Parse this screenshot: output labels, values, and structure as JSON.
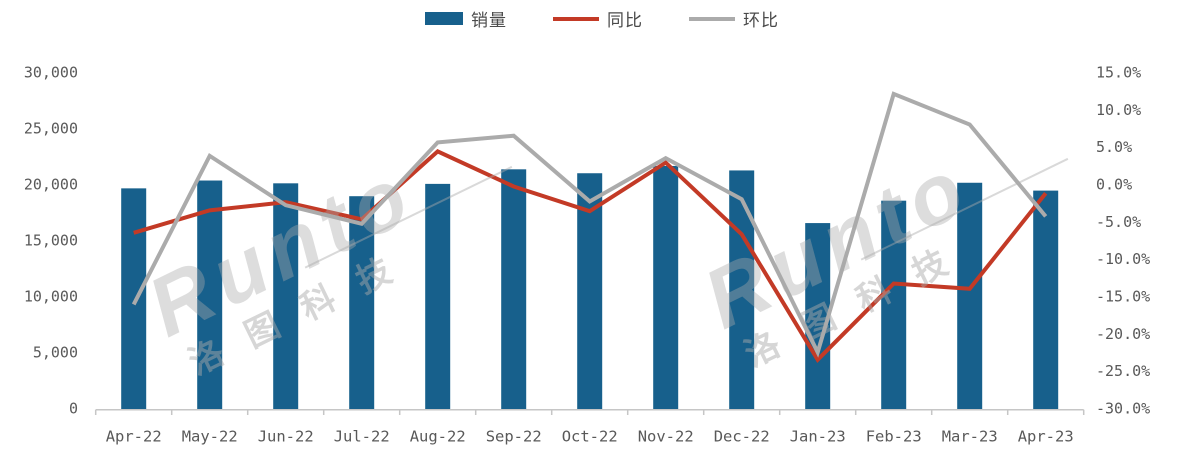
{
  "legend": [
    {
      "key": "sales-volume",
      "label": "销量",
      "swatch": "bar",
      "color": "#17608C"
    },
    {
      "key": "yoy",
      "label": "同比",
      "swatch": "line",
      "color": "#C33A26"
    },
    {
      "key": "mom",
      "label": "环比",
      "swatch": "line",
      "color": "#ABABAB"
    }
  ],
  "watermark": {
    "brand": "Runto",
    "cjk": "洛图科技"
  },
  "axes_text": {
    "left_ticks_top_to_bottom": [
      "30,000",
      "25,000",
      "20,000",
      "15,000",
      "10,000",
      "5,000",
      "0"
    ],
    "right_ticks_top_to_bottom": [
      "15.0%",
      "10.0%",
      "5.0%",
      "0.0%",
      "-5.0%",
      "-10.0%",
      "-15.0%",
      "-20.0%",
      "-25.0%",
      "-30.0%"
    ]
  },
  "chart_data": {
    "type": "bar+line combo",
    "title": "",
    "categories": [
      "Apr-22",
      "May-22",
      "Jun-22",
      "Jul-22",
      "Aug-22",
      "Sep-22",
      "Oct-22",
      "Nov-22",
      "Dec-22",
      "Jan-23",
      "Feb-23",
      "Mar-23",
      "Apr-23"
    ],
    "series": [
      {
        "name": "销量",
        "type": "bar",
        "axis": "left",
        "color": "#17608C",
        "values": [
          19700,
          20400,
          20150,
          19000,
          20100,
          21400,
          21050,
          21700,
          21300,
          16600,
          18600,
          20200,
          19500
        ]
      },
      {
        "name": "同比",
        "type": "line",
        "axis": "right",
        "unit": "%",
        "color": "#C33A26",
        "values": [
          -6.4,
          -3.4,
          -2.3,
          -4.6,
          4.5,
          -0.2,
          -3.5,
          3.0,
          -6.6,
          -23.4,
          -13.2,
          -13.9,
          -1.1
        ]
      },
      {
        "name": "环比",
        "type": "line",
        "axis": "right",
        "unit": "%",
        "color": "#ABABAB",
        "values": [
          -16.0,
          3.9,
          -2.7,
          -5.2,
          5.7,
          6.6,
          -2.2,
          3.6,
          -1.9,
          -22.4,
          12.2,
          8.1,
          -4.2
        ]
      }
    ],
    "left_axis": {
      "min": 0,
      "max": 30000,
      "tick_step": 5000
    },
    "right_axis": {
      "min": -30,
      "max": 15,
      "tick_step": 5,
      "unit": "%"
    },
    "grid": false,
    "legend_position": "top-center",
    "colors": {
      "axis_line": "#C6C6C6",
      "tick_text": "#595959"
    }
  }
}
